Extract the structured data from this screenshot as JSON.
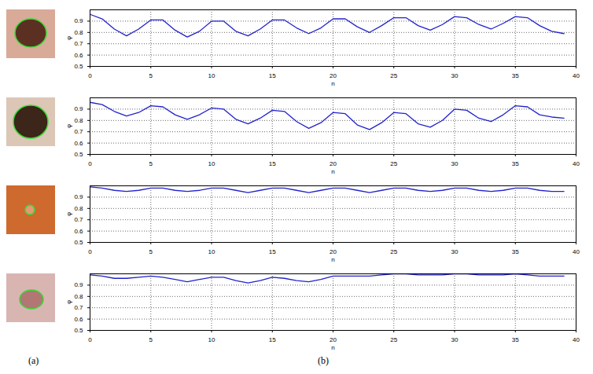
{
  "chart_data": [
    {
      "type": "line",
      "xlabel": "n",
      "ylabel": "φ",
      "x": [
        0,
        1,
        2,
        3,
        4,
        5,
        6,
        7,
        8,
        9,
        10,
        11,
        12,
        13,
        14,
        15,
        16,
        17,
        18,
        19,
        20,
        21,
        22,
        23,
        24,
        25,
        26,
        27,
        28,
        29,
        30,
        31,
        32,
        33,
        34,
        35,
        36,
        37,
        38,
        39
      ],
      "series": [
        {
          "color": "#2222cc",
          "values": [
            0.96,
            0.92,
            0.83,
            0.77,
            0.83,
            0.91,
            0.91,
            0.82,
            0.76,
            0.81,
            0.9,
            0.9,
            0.81,
            0.77,
            0.83,
            0.91,
            0.91,
            0.84,
            0.79,
            0.84,
            0.92,
            0.92,
            0.85,
            0.8,
            0.86,
            0.93,
            0.93,
            0.86,
            0.82,
            0.87,
            0.94,
            0.93,
            0.87,
            0.83,
            0.88,
            0.94,
            0.93,
            0.86,
            0.81,
            0.79
          ]
        }
      ],
      "xlim": [
        0,
        40
      ],
      "xticks": [
        0,
        5,
        10,
        15,
        20,
        25,
        30,
        35,
        40
      ],
      "ylim": [
        0.5,
        1
      ],
      "yticks": [
        0.5,
        0.6,
        0.7,
        0.8,
        0.9
      ],
      "grid": true
    },
    {
      "type": "line",
      "xlabel": "n",
      "ylabel": "φ",
      "x": [
        0,
        1,
        2,
        3,
        4,
        5,
        6,
        7,
        8,
        9,
        10,
        11,
        12,
        13,
        14,
        15,
        16,
        17,
        18,
        19,
        20,
        21,
        22,
        23,
        24,
        25,
        26,
        27,
        28,
        29,
        30,
        31,
        32,
        33,
        34,
        35,
        36,
        37,
        38,
        39
      ],
      "series": [
        {
          "color": "#2222cc",
          "values": [
            0.96,
            0.94,
            0.88,
            0.84,
            0.87,
            0.93,
            0.92,
            0.85,
            0.81,
            0.85,
            0.91,
            0.9,
            0.81,
            0.77,
            0.82,
            0.89,
            0.88,
            0.79,
            0.73,
            0.78,
            0.87,
            0.86,
            0.76,
            0.72,
            0.78,
            0.87,
            0.86,
            0.77,
            0.74,
            0.8,
            0.9,
            0.89,
            0.82,
            0.79,
            0.85,
            0.93,
            0.92,
            0.85,
            0.83,
            0.82
          ]
        }
      ],
      "xlim": [
        0,
        40
      ],
      "xticks": [
        0,
        5,
        10,
        15,
        20,
        25,
        30,
        35,
        40
      ],
      "ylim": [
        0.5,
        1
      ],
      "yticks": [
        0.5,
        0.6,
        0.7,
        0.8,
        0.9
      ],
      "grid": true
    },
    {
      "type": "line",
      "xlabel": "n",
      "ylabel": "φ",
      "x": [
        0,
        1,
        2,
        3,
        4,
        5,
        6,
        7,
        8,
        9,
        10,
        11,
        12,
        13,
        14,
        15,
        16,
        17,
        18,
        19,
        20,
        21,
        22,
        23,
        24,
        25,
        26,
        27,
        28,
        29,
        30,
        31,
        32,
        33,
        34,
        35,
        36,
        37,
        38,
        39
      ],
      "series": [
        {
          "color": "#2222cc",
          "values": [
            0.99,
            0.98,
            0.96,
            0.95,
            0.96,
            0.98,
            0.98,
            0.96,
            0.95,
            0.96,
            0.98,
            0.98,
            0.96,
            0.94,
            0.96,
            0.98,
            0.98,
            0.96,
            0.94,
            0.96,
            0.98,
            0.98,
            0.96,
            0.94,
            0.96,
            0.98,
            0.98,
            0.96,
            0.95,
            0.96,
            0.98,
            0.98,
            0.96,
            0.95,
            0.96,
            0.98,
            0.98,
            0.96,
            0.95,
            0.95
          ]
        }
      ],
      "xlim": [
        0,
        40
      ],
      "xticks": [
        0,
        5,
        10,
        15,
        20,
        25,
        30,
        35,
        40
      ],
      "ylim": [
        0.5,
        1
      ],
      "yticks": [
        0.5,
        0.6,
        0.7,
        0.8,
        0.9
      ],
      "grid": true
    },
    {
      "type": "line",
      "xlabel": "n",
      "ylabel": "φ",
      "x": [
        0,
        1,
        2,
        3,
        4,
        5,
        6,
        7,
        8,
        9,
        10,
        11,
        12,
        13,
        14,
        15,
        16,
        17,
        18,
        19,
        20,
        21,
        22,
        23,
        24,
        25,
        26,
        27,
        28,
        29,
        30,
        31,
        32,
        33,
        34,
        35,
        36,
        37,
        38,
        39
      ],
      "series": [
        {
          "color": "#2222cc",
          "values": [
            0.99,
            0.98,
            0.96,
            0.96,
            0.97,
            0.98,
            0.97,
            0.95,
            0.93,
            0.95,
            0.97,
            0.97,
            0.94,
            0.92,
            0.94,
            0.97,
            0.96,
            0.94,
            0.93,
            0.95,
            0.98,
            0.98,
            0.98,
            0.98,
            0.99,
            1.0,
            1.0,
            0.99,
            0.99,
            0.99,
            1.0,
            1.0,
            0.99,
            0.99,
            0.99,
            1.0,
            0.99,
            0.98,
            0.98,
            0.98
          ]
        }
      ],
      "xlim": [
        0,
        40
      ],
      "xticks": [
        0,
        5,
        10,
        15,
        20,
        25,
        30,
        35,
        40
      ],
      "ylim": [
        0.5,
        1
      ],
      "yticks": [
        0.5,
        0.6,
        0.7,
        0.8,
        0.9
      ],
      "grid": true
    }
  ],
  "panel_labels": [
    "(a)",
    "(b)"
  ]
}
